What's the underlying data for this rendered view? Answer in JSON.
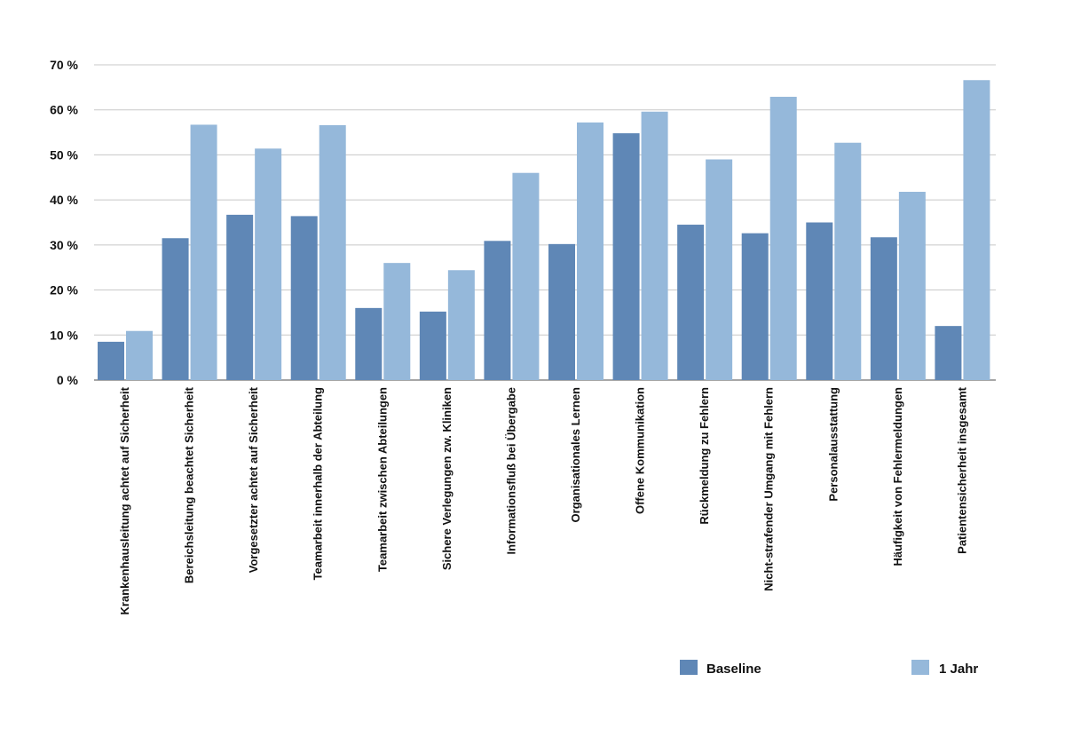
{
  "colors": {
    "baseline": "#5f87b6",
    "jahr": "#95b8da",
    "grid": "#c8c8c8",
    "axis": "#888888"
  },
  "chart_data": {
    "type": "bar",
    "ylim": [
      0,
      70
    ],
    "y_ticks": [
      {
        "value": 0,
        "label": "0 %"
      },
      {
        "value": 10,
        "label": "10 %"
      },
      {
        "value": 20,
        "label": "20 %"
      },
      {
        "value": 30,
        "label": "30 %"
      },
      {
        "value": 40,
        "label": "40 %"
      },
      {
        "value": 50,
        "label": "50 %"
      },
      {
        "value": 60,
        "label": "60 %"
      },
      {
        "value": 70,
        "label": "70 %"
      }
    ],
    "grid": true,
    "legend_position": "bottom-right",
    "categories": [
      "Krankenhausleitung achtet auf Sicherheit",
      "Bereichsleitung beachtet Sicherheit",
      "Vorgesetzter  achtet auf Sicherheit",
      "Teamarbeit innerhalb der Abteilung",
      "Teamarbeit zwischen Abteilungen",
      "Sichere Verlegungen zw. Kliniken",
      "Informationsfluß bei Übergabe",
      "Organisationales Lernen",
      "Offene Kommunikation",
      "Rückmeldung zu Fehlern",
      "Nicht-strafender Umgang mit Fehlern",
      "Personalausstattung",
      "Häufigkeit von Fehlermeldungen",
      "Patientensicherheit insgesamt"
    ],
    "series": [
      {
        "name": "Baseline",
        "values": [
          8.5,
          31.5,
          36.7,
          36.4,
          16.0,
          15.2,
          30.9,
          30.2,
          54.8,
          34.5,
          32.6,
          35.0,
          31.7,
          12.0
        ]
      },
      {
        "name": "1 Jahr",
        "values": [
          10.9,
          56.7,
          51.4,
          56.6,
          26.0,
          24.4,
          46.0,
          57.2,
          59.6,
          49.0,
          62.9,
          52.7,
          41.8,
          66.6
        ]
      }
    ]
  }
}
